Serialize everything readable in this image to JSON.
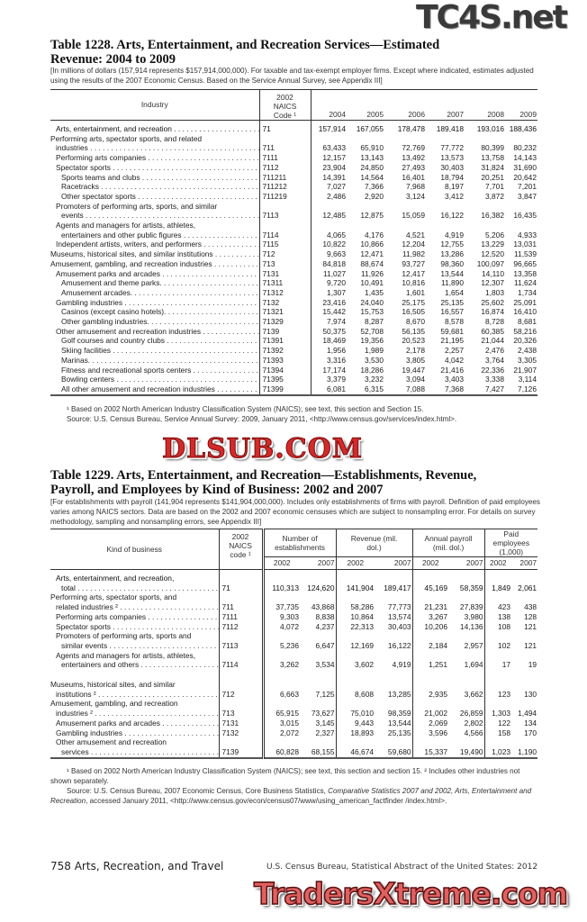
{
  "watermarks": {
    "top": "TC4S.net",
    "middle": "DLSUB.COM",
    "bottom": "TradersXtreme.com"
  },
  "table1228": {
    "title_line1": "Table 1228. Arts, Entertainment, and Recreation Services—Estimated",
    "title_line2": "Revenue: 2004 to 2009",
    "intro": "[In millions of dollars (157,914 represents $157,914,000,000). For taxable and tax-exempt employer firms. Except where indicated, estimates adjusted using the results of the 2007 Economic Census. Based on the Service Annual Survey, see Appendix III]",
    "headers": {
      "industry": "Industry",
      "code": "2002 NAICS Code ¹",
      "years": [
        "2004",
        "2005",
        "2006",
        "2007",
        "2008",
        "2009"
      ]
    },
    "rows": [
      {
        "lines": [
          "Arts, entertainment, and recreation"
        ],
        "indent": 1,
        "bold": true,
        "code": "71",
        "values": [
          "157,914",
          "167,055",
          "178,478",
          "189,418",
          "193,016",
          "188,436"
        ]
      },
      {
        "lines": [
          "Performing arts, spectator sports, and related",
          "industries"
        ],
        "indent": 0,
        "code": "711",
        "values": [
          "63,433",
          "65,910",
          "72,769",
          "77,772",
          "80,399",
          "80,232"
        ]
      },
      {
        "lines": [
          "Performing arts companies"
        ],
        "indent": 1,
        "code": "7111",
        "values": [
          "12,157",
          "13,143",
          "13,492",
          "13,573",
          "13,758",
          "14,143"
        ]
      },
      {
        "lines": [
          "Spectator sports"
        ],
        "indent": 1,
        "code": "7112",
        "values": [
          "23,904",
          "24,850",
          "27,493",
          "30,403",
          "31,824",
          "31,690"
        ]
      },
      {
        "lines": [
          "Sports teams and clubs"
        ],
        "indent": 2,
        "code": "711211",
        "values": [
          "14,391",
          "14,564",
          "16,401",
          "18,794",
          "20,251",
          "20,642"
        ]
      },
      {
        "lines": [
          "Racetracks"
        ],
        "indent": 2,
        "code": "711212",
        "values": [
          "7,027",
          "7,366",
          "7,968",
          "8,197",
          "7,701",
          "7,201"
        ]
      },
      {
        "lines": [
          "Other spectator sports"
        ],
        "indent": 2,
        "code": "711219",
        "values": [
          "2,486",
          "2,920",
          "3,124",
          "3,412",
          "3,872",
          "3,847"
        ]
      },
      {
        "lines": [
          "Promoters of performing arts, sports, and similar",
          "events"
        ],
        "indent": 1,
        "code": "7113",
        "values": [
          "12,485",
          "12,875",
          "15,059",
          "16,122",
          "16,382",
          "16,435"
        ]
      },
      {
        "lines": [
          "Agents and managers for artists, athletes,",
          "entertainers and other public figures"
        ],
        "indent": 1,
        "code": "7114",
        "values": [
          "4,065",
          "4,176",
          "4,521",
          "4,919",
          "5,206",
          "4,933"
        ]
      },
      {
        "lines": [
          "Independent artists, writers, and performers"
        ],
        "indent": 1,
        "code": "7115",
        "values": [
          "10,822",
          "10,866",
          "12,204",
          "12,755",
          "13,229",
          "13,031"
        ]
      },
      {
        "lines": [
          "Museums, historical sites, and similar institutions"
        ],
        "indent": 0,
        "code": "712",
        "values": [
          "9,663",
          "12,471",
          "11,982",
          "13,286",
          "12,520",
          "11,539"
        ]
      },
      {
        "lines": [
          "Amusement, gambling, and recreation industries"
        ],
        "indent": 0,
        "code": "713",
        "values": [
          "84,818",
          "88,674",
          "93,727",
          "98,360",
          "100,097",
          "96,665"
        ]
      },
      {
        "lines": [
          "Amusement parks and arcades"
        ],
        "indent": 1,
        "code": "7131",
        "values": [
          "11,027",
          "11,926",
          "12,417",
          "13,544",
          "14,110",
          "13,358"
        ]
      },
      {
        "lines": [
          "Amusement and theme parks."
        ],
        "indent": 2,
        "code": "71311",
        "values": [
          "9,720",
          "10,491",
          "10,816",
          "11,890",
          "12,307",
          "11,624"
        ]
      },
      {
        "lines": [
          "Amusement arcades."
        ],
        "indent": 2,
        "code": "71312",
        "values": [
          "1,307",
          "1,435",
          "1,601",
          "1,654",
          "1,803",
          "1,734"
        ]
      },
      {
        "lines": [
          "Gambling industries"
        ],
        "indent": 1,
        "code": "7132",
        "values": [
          "23,416",
          "24,040",
          "25,175",
          "25,135",
          "25,602",
          "25,091"
        ]
      },
      {
        "lines": [
          "Casinos (except casino hotels)."
        ],
        "indent": 2,
        "code": "71321",
        "values": [
          "15,442",
          "15,753",
          "16,505",
          "16,557",
          "16,874",
          "16,410"
        ]
      },
      {
        "lines": [
          "Other gambling industries."
        ],
        "indent": 2,
        "code": "71329",
        "values": [
          "7,974",
          "8,287",
          "8,670",
          "8,578",
          "8,728",
          "8,681"
        ]
      },
      {
        "lines": [
          "Other amusement and recreation industries"
        ],
        "indent": 1,
        "code": "7139",
        "values": [
          "50,375",
          "52,708",
          "56,135",
          "59,681",
          "60,385",
          "58,216"
        ]
      },
      {
        "lines": [
          "Golf courses and country clubs"
        ],
        "indent": 2,
        "code": "71391",
        "values": [
          "18,469",
          "19,356",
          "20,523",
          "21,195",
          "21,044",
          "20,326"
        ]
      },
      {
        "lines": [
          "Skiing facilities"
        ],
        "indent": 2,
        "code": "71392",
        "values": [
          "1,956",
          "1,989",
          "2,178",
          "2,257",
          "2,476",
          "2,438"
        ]
      },
      {
        "lines": [
          "Marinas."
        ],
        "indent": 2,
        "code": "71393",
        "values": [
          "3,316",
          "3,530",
          "3,805",
          "4,042",
          "3,764",
          "3,305"
        ]
      },
      {
        "lines": [
          "Fitness and recreational sports centers"
        ],
        "indent": 2,
        "code": "71394",
        "values": [
          "17,174",
          "18,286",
          "19,447",
          "21,416",
          "22,336",
          "21,907"
        ]
      },
      {
        "lines": [
          "Bowling centers"
        ],
        "indent": 2,
        "code": "71395",
        "values": [
          "3,379",
          "3,232",
          "3,094",
          "3,403",
          "3,338",
          "3,114"
        ]
      },
      {
        "lines": [
          "All other amusement and recreation industries"
        ],
        "indent": 2,
        "code": "71399",
        "values": [
          "6,081",
          "6,315",
          "7,088",
          "7,368",
          "7,427",
          "7,126"
        ]
      }
    ],
    "footnote": "¹ Based on 2002 North American Industry Classification System (NAICS); see text, this section and Section 15.",
    "source": "Source: U.S. Census Bureau, Service Annual Survey: 2009, January 2011, <http://www.census.gov/services/index.html>."
  },
  "table1229": {
    "title_line1": "Table 1229. Arts, Entertainment, and Recreation—Establishments, Revenue,",
    "title_line2": "Payroll, and Employees by Kind of Business: 2002 and 2007",
    "intro": "[For establishments with payroll (141,904 represents $141,904,000,000). Includes only establishments of firms with payroll. Definition of paid employees varies among NAICS sectors. Data are based on the 2002 and 2007 economic censuses which are subject to nonsampling error. For details on survey methodology, sampling and nonsampling errors, see Appendix III]",
    "headers": {
      "kind": "Kind of business",
      "code": "2002 NAICS code ¹",
      "groups": [
        "Number of establishments",
        "Revenue (mil. dol.)",
        "Annual payroll (mil. dol.)",
        "Paid employees (1,000)"
      ],
      "years": [
        "2002",
        "2007",
        "2002",
        "2007",
        "2002",
        "2007",
        "2002",
        "2007"
      ]
    },
    "rows": [
      {
        "lines": [
          "Arts, entertainment, and recreation,",
          "total"
        ],
        "indent": 1,
        "bold": true,
        "code": "71",
        "values": [
          "110,313",
          "124,620",
          "141,904",
          "189,417",
          "45,169",
          "58,359",
          "1,849",
          "2,061"
        ]
      },
      {
        "lines": [
          "Performing arts, spectator sports, and",
          "related industries ²"
        ],
        "indent": 0,
        "code": "711",
        "values": [
          "37,735",
          "43,868",
          "58,286",
          "77,773",
          "21,231",
          "27,839",
          "423",
          "438"
        ]
      },
      {
        "lines": [
          "Performing arts companies"
        ],
        "indent": 1,
        "code": "7111",
        "values": [
          "9,303",
          "8,838",
          "10,864",
          "13,574",
          "3,267",
          "3,980",
          "138",
          "128"
        ]
      },
      {
        "lines": [
          "Spectator sports"
        ],
        "indent": 1,
        "code": "7112",
        "values": [
          "4,072",
          "4,237",
          "22,313",
          "30,403",
          "10,206",
          "14,136",
          "108",
          "121"
        ]
      },
      {
        "lines": [
          "Promoters of performing arts, sports and",
          "similar events"
        ],
        "indent": 1,
        "code": "7113",
        "values": [
          "5,236",
          "6,647",
          "12,169",
          "16,122",
          "2,184",
          "2,957",
          "102",
          "121"
        ]
      },
      {
        "lines": [
          "Agents and managers for artists, athletes,",
          "entertainers and others"
        ],
        "indent": 1,
        "code": "7114",
        "values": [
          "3,262",
          "3,534",
          "3,602",
          "4,919",
          "1,251",
          "1,694",
          "17",
          "19"
        ]
      },
      {
        "lines": [
          "Museums, historical sites, and similar",
          "institutions ²"
        ],
        "indent": 0,
        "spacer": true,
        "code": "712",
        "values": [
          "6,663",
          "7,125",
          "8,608",
          "13,285",
          "2,935",
          "3,662",
          "123",
          "130"
        ]
      },
      {
        "lines": [
          "Amusement, gambling, and recreation",
          "industries ²"
        ],
        "indent": 0,
        "code": "713",
        "values": [
          "65,915",
          "73,627",
          "75,010",
          "98,359",
          "21,002",
          "26,859",
          "1,303",
          "1,494"
        ]
      },
      {
        "lines": [
          "Amusement parks and arcades"
        ],
        "indent": 1,
        "code": "7131",
        "values": [
          "3,015",
          "3,145",
          "9,443",
          "13,544",
          "2,069",
          "2,802",
          "122",
          "134"
        ]
      },
      {
        "lines": [
          "Gambling industries"
        ],
        "indent": 1,
        "code": "7132",
        "values": [
          "2,072",
          "2,327",
          "18,893",
          "25,135",
          "3,596",
          "4,566",
          "158",
          "170"
        ]
      },
      {
        "lines": [
          "Other amusement and recreation",
          "services"
        ],
        "indent": 1,
        "code": "7139",
        "values": [
          "60,828",
          "68,155",
          "46,674",
          "59,680",
          "15,337",
          "19,490",
          "1,023",
          "1,190"
        ]
      }
    ],
    "footnote": "¹ Based on 2002 North American Industry Classification System (NAICS); see text, this section and section 15. ² Includes other industries not shown separately.",
    "source_prefix": "Source: U.S. Census Bureau, 2007 Economic Census, Core Business Statistics, ",
    "source_title": "Comparative Statistics 2007 and 2002, Arts, Entertainment and Recreation",
    "source_suffix": ", accessed January 2011, <http://www.census.gov/econ/census07/www/using_american_factfinder /index.html>."
  },
  "footer": {
    "page": "758  Arts, Recreation, and Travel",
    "publication": "U.S. Census Bureau, Statistical Abstract of the United States: 2012"
  }
}
